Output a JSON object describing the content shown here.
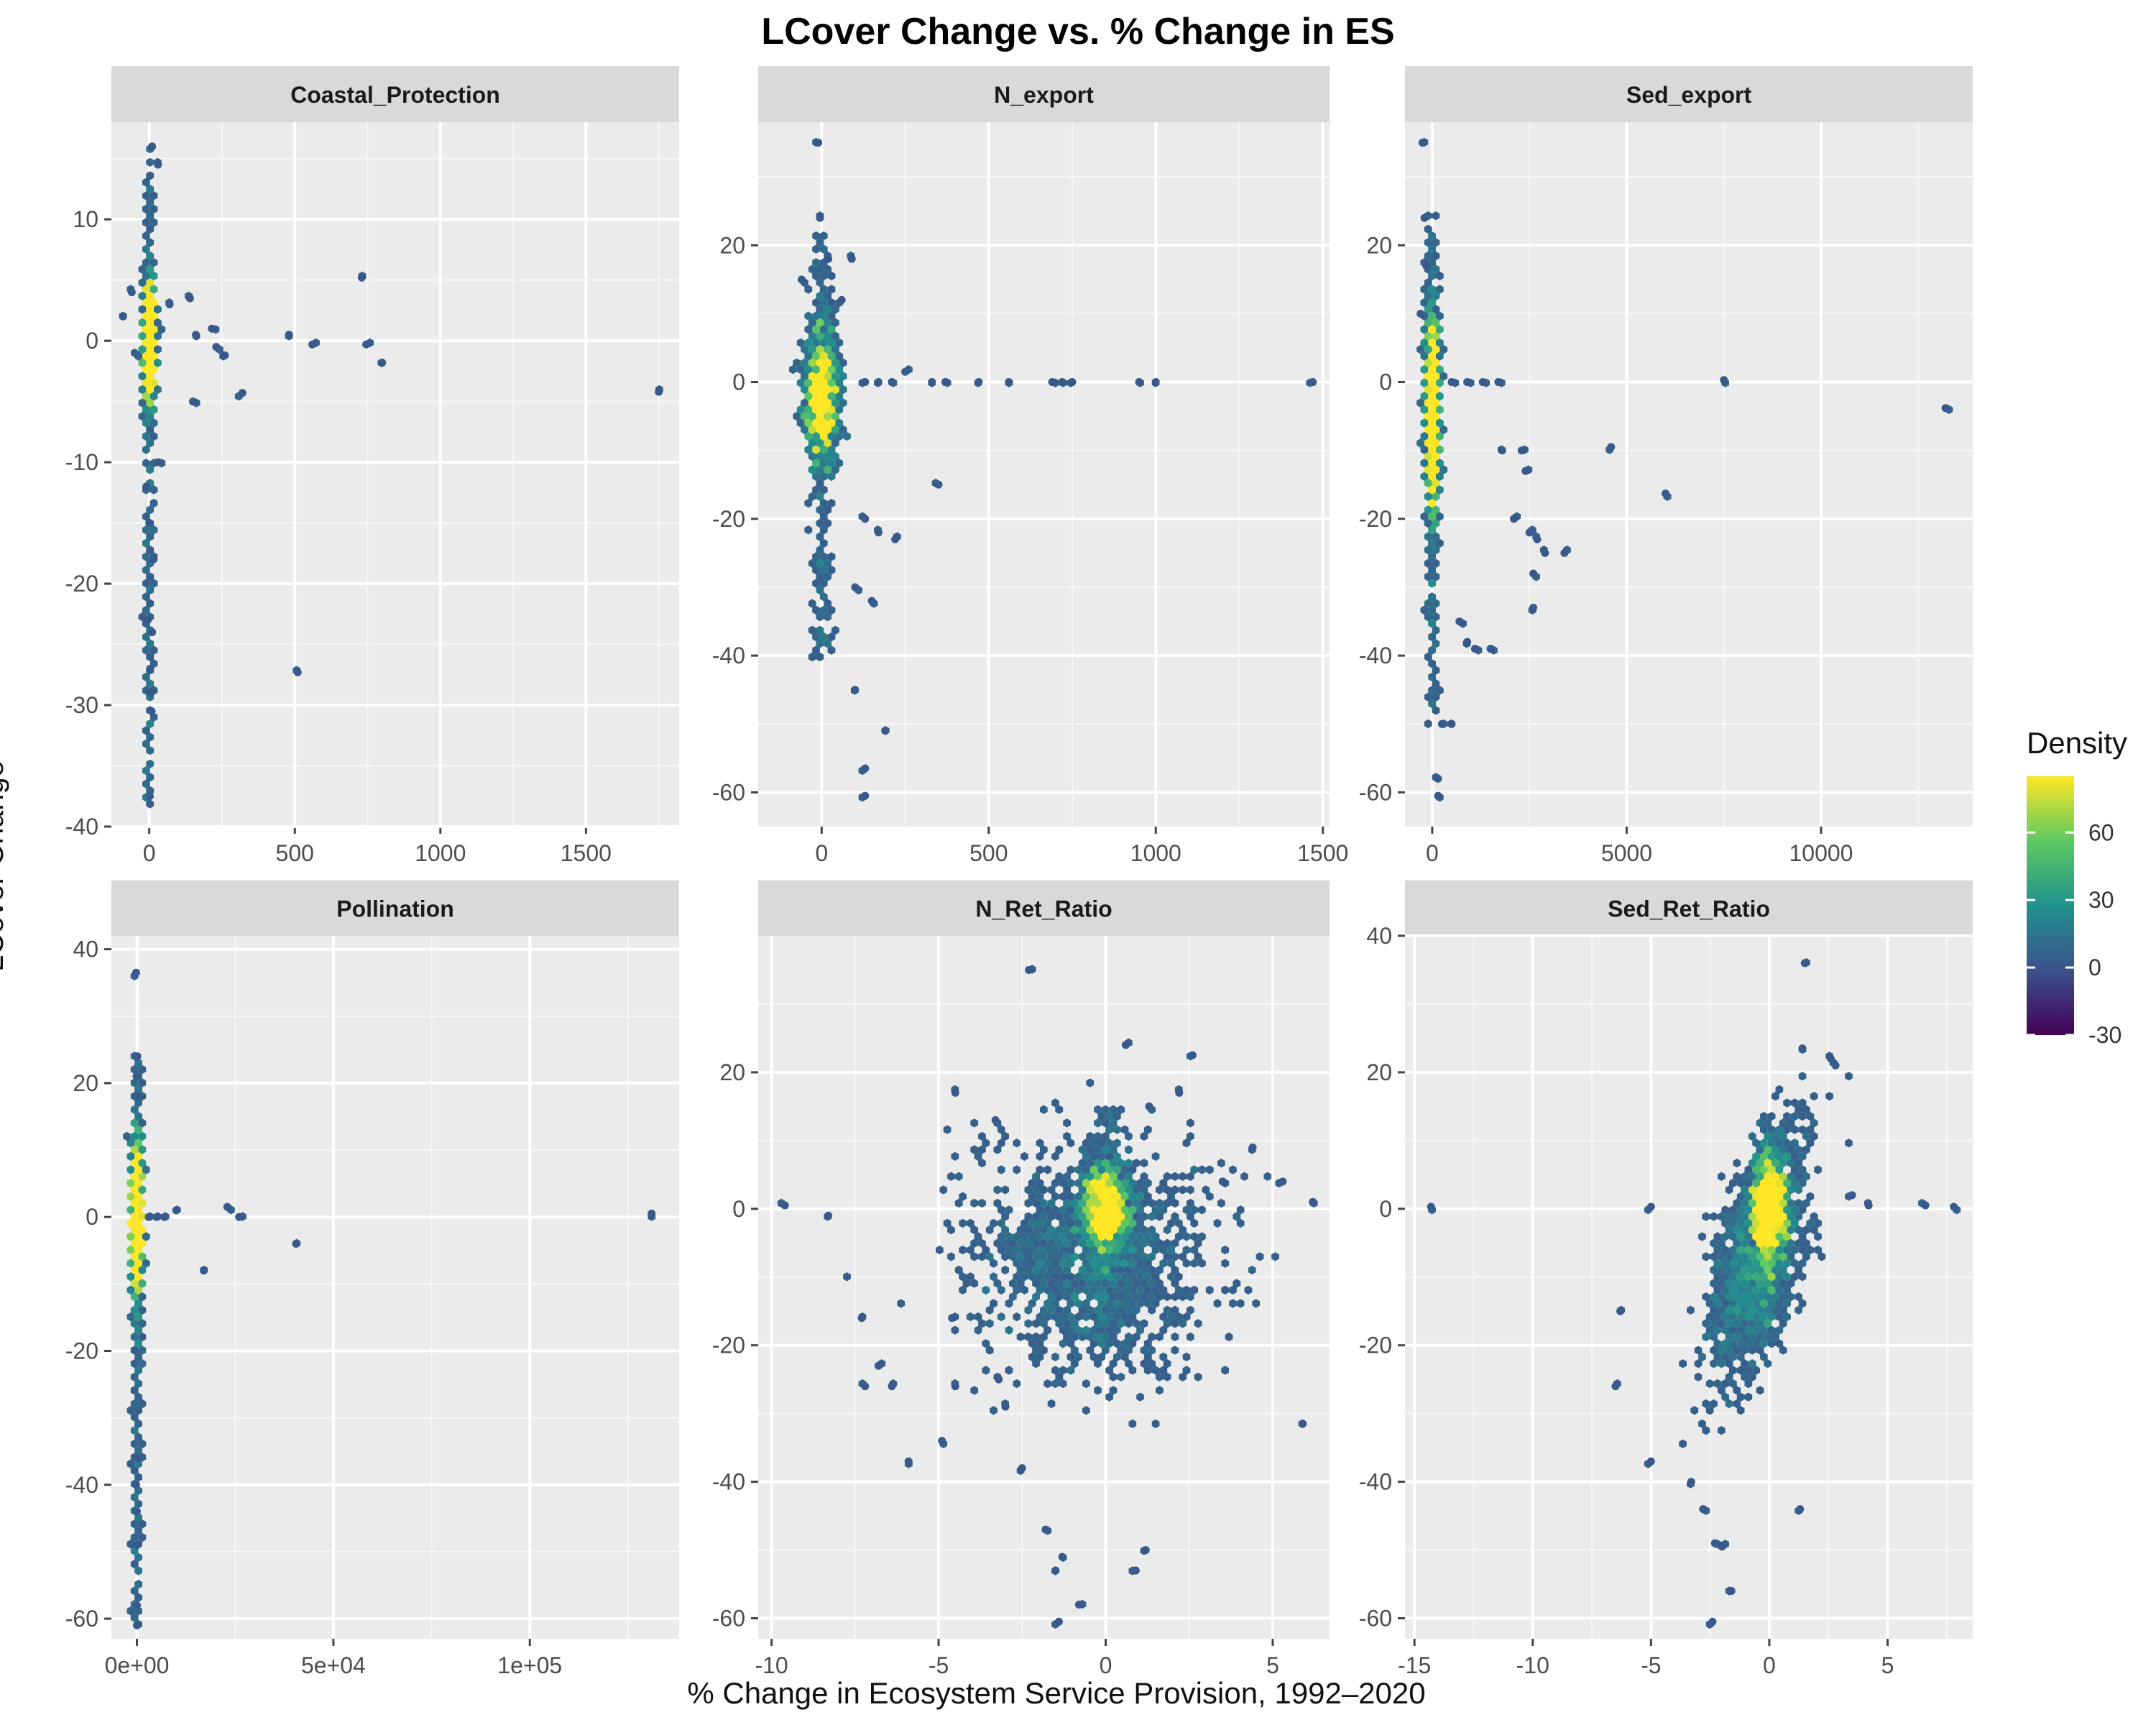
{
  "title": "LCover Change vs. % Change in ES",
  "x_title": "% Change in Ecosystem Service Provision, 1992–2020",
  "y_title": "LCover Change",
  "legend": {
    "title": "Density",
    "ticks": [
      -30,
      0,
      30,
      60
    ],
    "range": [
      -30,
      85
    ],
    "colors": [
      "#440154",
      "#3b528b",
      "#21918c",
      "#5ec962",
      "#fde725"
    ]
  },
  "chart_data": [
    {
      "type": "heatmap",
      "facet": "Coastal_Protection",
      "xlim": [
        -130,
        1820
      ],
      "ylim": [
        -40,
        18
      ],
      "xticks": [
        0,
        500,
        1000,
        1500
      ],
      "xtick_labels": [
        "0",
        "500",
        "1000",
        "1500"
      ],
      "yticks": [
        -40,
        -30,
        -20,
        -10,
        0,
        10
      ],
      "ytick_labels": [
        "-40",
        "-30",
        "-20",
        "-10",
        "0",
        "10"
      ],
      "core": {
        "x": 0,
        "y": 0,
        "sx": 8,
        "sy": 2.5
      },
      "spine": {
        "x": 0,
        "y0": -38,
        "y1": 16
      },
      "points": [
        [
          2,
          -37.5
        ],
        [
          8,
          -30.5
        ],
        [
          5,
          -29
        ],
        [
          3,
          -27
        ],
        [
          10,
          -24
        ],
        [
          -5,
          -23
        ],
        [
          15,
          -18
        ],
        [
          0,
          -15
        ],
        [
          -10,
          -12
        ],
        [
          30,
          -10
        ],
        [
          140,
          3.5
        ],
        [
          150,
          -5
        ],
        [
          70,
          3
        ],
        [
          160,
          0.5
        ],
        [
          215,
          1
        ],
        [
          230,
          -0.5
        ],
        [
          260,
          -1.2
        ],
        [
          320,
          -4.3
        ],
        [
          480,
          0.5
        ],
        [
          510,
          -27.3
        ],
        [
          560,
          -0.3
        ],
        [
          730,
          5.2
        ],
        [
          745,
          -0.3
        ],
        [
          800,
          -1.8
        ],
        [
          1750,
          -4.2
        ],
        [
          -60,
          4
        ],
        [
          -90,
          2
        ],
        [
          -50,
          -1
        ],
        [
          30,
          14.5
        ],
        [
          10,
          16
        ]
      ]
    },
    {
      "type": "heatmap",
      "facet": "N_export",
      "xlim": [
        -190,
        1520
      ],
      "ylim": [
        -65,
        38
      ],
      "xticks": [
        0,
        500,
        1000,
        1500
      ],
      "xtick_labels": [
        "0",
        "500",
        "1000",
        "1500"
      ],
      "yticks": [
        -60,
        -40,
        -20,
        0,
        20
      ],
      "ytick_labels": [
        "-60",
        "-40",
        "-20",
        "0",
        "20"
      ],
      "core": {
        "x": 0,
        "y": -2,
        "sx": 25,
        "sy": 5
      },
      "spine": {
        "x": 0,
        "y0": -40,
        "y1": 22
      },
      "points": [
        [
          -10,
          35
        ],
        [
          -5,
          24
        ],
        [
          20,
          18
        ],
        [
          90,
          18
        ],
        [
          -60,
          15
        ],
        [
          60,
          12
        ],
        [
          130,
          0
        ],
        [
          170,
          0
        ],
        [
          210,
          0
        ],
        [
          250,
          1.5
        ],
        [
          330,
          0
        ],
        [
          370,
          0
        ],
        [
          470,
          0
        ],
        [
          560,
          0
        ],
        [
          690,
          0
        ],
        [
          720,
          0
        ],
        [
          750,
          0
        ],
        [
          950,
          0
        ],
        [
          1000,
          0
        ],
        [
          1470,
          0
        ],
        [
          350,
          -15
        ],
        [
          130,
          -20
        ],
        [
          170,
          -22
        ],
        [
          220,
          -23
        ],
        [
          100,
          -30
        ],
        [
          150,
          -32
        ],
        [
          190,
          -51
        ],
        [
          130,
          -56.5
        ],
        [
          130,
          -60.5
        ],
        [
          100,
          -45
        ]
      ]
    },
    {
      "type": "heatmap",
      "facet": "Sed_export",
      "xlim": [
        -700,
        13900
      ],
      "ylim": [
        -65,
        38
      ],
      "xticks": [
        0,
        5000,
        10000
      ],
      "xtick_labels": [
        "0",
        "5000",
        "10000"
      ],
      "yticks": [
        -60,
        -40,
        -20,
        0,
        20
      ],
      "ytick_labels": [
        "-60",
        "-40",
        "-20",
        "0",
        "20"
      ],
      "core": {
        "x": 0,
        "y": -5,
        "sx": 80,
        "sy": 8
      },
      "spine": {
        "x": 0,
        "y0": -50,
        "y1": 24
      },
      "points": [
        [
          -250,
          35
        ],
        [
          -200,
          24
        ],
        [
          -150,
          17
        ],
        [
          -300,
          10
        ],
        [
          500,
          0
        ],
        [
          900,
          0
        ],
        [
          1300,
          0
        ],
        [
          1700,
          0
        ],
        [
          1800,
          -10
        ],
        [
          2300,
          -10
        ],
        [
          2400,
          -13
        ],
        [
          2100,
          -20
        ],
        [
          2500,
          -22
        ],
        [
          2700,
          -23
        ],
        [
          2900,
          -25
        ],
        [
          3400,
          -25
        ],
        [
          2600,
          -28
        ],
        [
          2600,
          -33
        ],
        [
          1100,
          -39
        ],
        [
          700,
          -35
        ],
        [
          150,
          -58
        ],
        [
          150,
          -60.5
        ],
        [
          250,
          -50
        ],
        [
          500,
          -50
        ],
        [
          4600,
          -9.5
        ],
        [
          6000,
          -16.3
        ],
        [
          7500,
          0.3
        ],
        [
          13200,
          -3.8
        ],
        [
          1500,
          -39
        ],
        [
          900,
          -38
        ]
      ]
    },
    {
      "type": "heatmap",
      "facet": "Pollination",
      "xlim": [
        -6500,
        138000
      ],
      "ylim": [
        -63,
        42
      ],
      "xticks": [
        0,
        50000,
        100000
      ],
      "xtick_labels": [
        "0e+00",
        "5e+04",
        "1e+05"
      ],
      "yticks": [
        -60,
        -40,
        -20,
        0,
        20,
        40
      ],
      "ytick_labels": [
        "-60",
        "-40",
        "-20",
        "0",
        "20",
        "40"
      ],
      "core": {
        "x": 0,
        "y": 0,
        "sx": 600,
        "sy": 6
      },
      "spine": {
        "x": 0,
        "y0": -61,
        "y1": 24
      },
      "points": [
        [
          -200,
          36.5
        ],
        [
          100,
          24
        ],
        [
          -100,
          21
        ],
        [
          300,
          18
        ],
        [
          3000,
          0
        ],
        [
          5000,
          0
        ],
        [
          7000,
          0
        ],
        [
          10000,
          1
        ],
        [
          17000,
          -8
        ],
        [
          23000,
          1.5
        ],
        [
          26000,
          0
        ],
        [
          40500,
          -4
        ],
        [
          131000,
          0.5
        ],
        [
          0,
          -49
        ],
        [
          0,
          -58
        ],
        [
          0,
          -61
        ],
        [
          0,
          -44
        ],
        [
          -200,
          -40
        ],
        [
          400,
          -36
        ]
      ]
    },
    {
      "type": "heatmap",
      "facet": "N_Ret_Ratio",
      "xlim": [
        -10.4,
        6.7
      ],
      "ylim": [
        -63,
        40
      ],
      "xticks": [
        -10,
        -5,
        0,
        5
      ],
      "xtick_labels": [
        "-10",
        "-5",
        "0",
        "5"
      ],
      "yticks": [
        -60,
        -40,
        -20,
        0,
        20
      ],
      "ytick_labels": [
        "-60",
        "-40",
        "-20",
        "0",
        "20"
      ],
      "core": {
        "x": 0,
        "y": 0,
        "sx": 0.35,
        "sy": 3
      },
      "blob": {
        "x": -0.5,
        "y": -7,
        "sx": 1.7,
        "sy": 8
      },
      "spine": {
        "x": 0,
        "y0": -20,
        "y1": 15
      },
      "points": [
        [
          -9.6,
          0.5
        ],
        [
          -8.3,
          -1
        ],
        [
          -7.3,
          -16
        ],
        [
          -7.2,
          -26
        ],
        [
          -6.8,
          -23
        ],
        [
          -6.4,
          -26
        ],
        [
          -5.9,
          -37
        ],
        [
          -4.9,
          -34
        ],
        [
          -4.6,
          -16
        ],
        [
          -4.5,
          -26
        ],
        [
          -3.2,
          -25
        ],
        [
          -3,
          -29
        ],
        [
          -2.5,
          -38
        ],
        [
          -1.8,
          -47
        ],
        [
          -1.3,
          -51
        ],
        [
          -1.5,
          -53
        ],
        [
          -0.8,
          -58
        ],
        [
          -1.4,
          -60.5
        ],
        [
          -2.3,
          35
        ],
        [
          -4.5,
          17
        ],
        [
          -3.3,
          13
        ],
        [
          0.6,
          24
        ],
        [
          2.6,
          22.5
        ],
        [
          2.2,
          17
        ],
        [
          1.3,
          15
        ],
        [
          5.9,
          -31.5
        ],
        [
          6.2,
          1
        ],
        [
          5.3,
          4
        ],
        [
          4.4,
          9
        ],
        [
          0.9,
          -53
        ],
        [
          1.2,
          -50
        ],
        [
          3.5,
          4
        ]
      ]
    },
    {
      "type": "heatmap",
      "facet": "Sed_Ret_Ratio",
      "xlim": [
        -15.4,
        8.6
      ],
      "ylim": [
        -63,
        40
      ],
      "xticks": [
        -15,
        -10,
        -5,
        0,
        5
      ],
      "xtick_labels": [
        "-15",
        "-10",
        "-5",
        "0",
        "5"
      ],
      "yticks": [
        -60,
        -40,
        -20,
        0,
        20,
        40
      ],
      "ytick_labels": [
        "-60",
        "-40",
        "-20",
        "0",
        "20",
        "40"
      ],
      "core": {
        "x": 0,
        "y": 0,
        "sx": 0.4,
        "sy": 4
      },
      "blob": {
        "x": -0.5,
        "y": -7,
        "sx": 1.0,
        "sy": 9
      },
      "rho": 0.55,
      "spine": {
        "x": 0,
        "y0": -20,
        "y1": 12
      },
      "points": [
        [
          -14.3,
          0.3
        ],
        [
          -5,
          0.3
        ],
        [
          -6.3,
          -15
        ],
        [
          -6.5,
          -26
        ],
        [
          -5,
          -37
        ],
        [
          -3.3,
          -40
        ],
        [
          -2.8,
          -44
        ],
        [
          -2.3,
          -49
        ],
        [
          -2,
          -49.5
        ],
        [
          -1.6,
          -56
        ],
        [
          -2.4,
          -60.5
        ],
        [
          1.5,
          36
        ],
        [
          1.4,
          23.5
        ],
        [
          2.6,
          22
        ],
        [
          2.8,
          21
        ],
        [
          3.5,
          2
        ],
        [
          4.2,
          0.5
        ],
        [
          6.6,
          0.5
        ],
        [
          7.8,
          0.3
        ],
        [
          1.3,
          -44
        ]
      ]
    }
  ]
}
